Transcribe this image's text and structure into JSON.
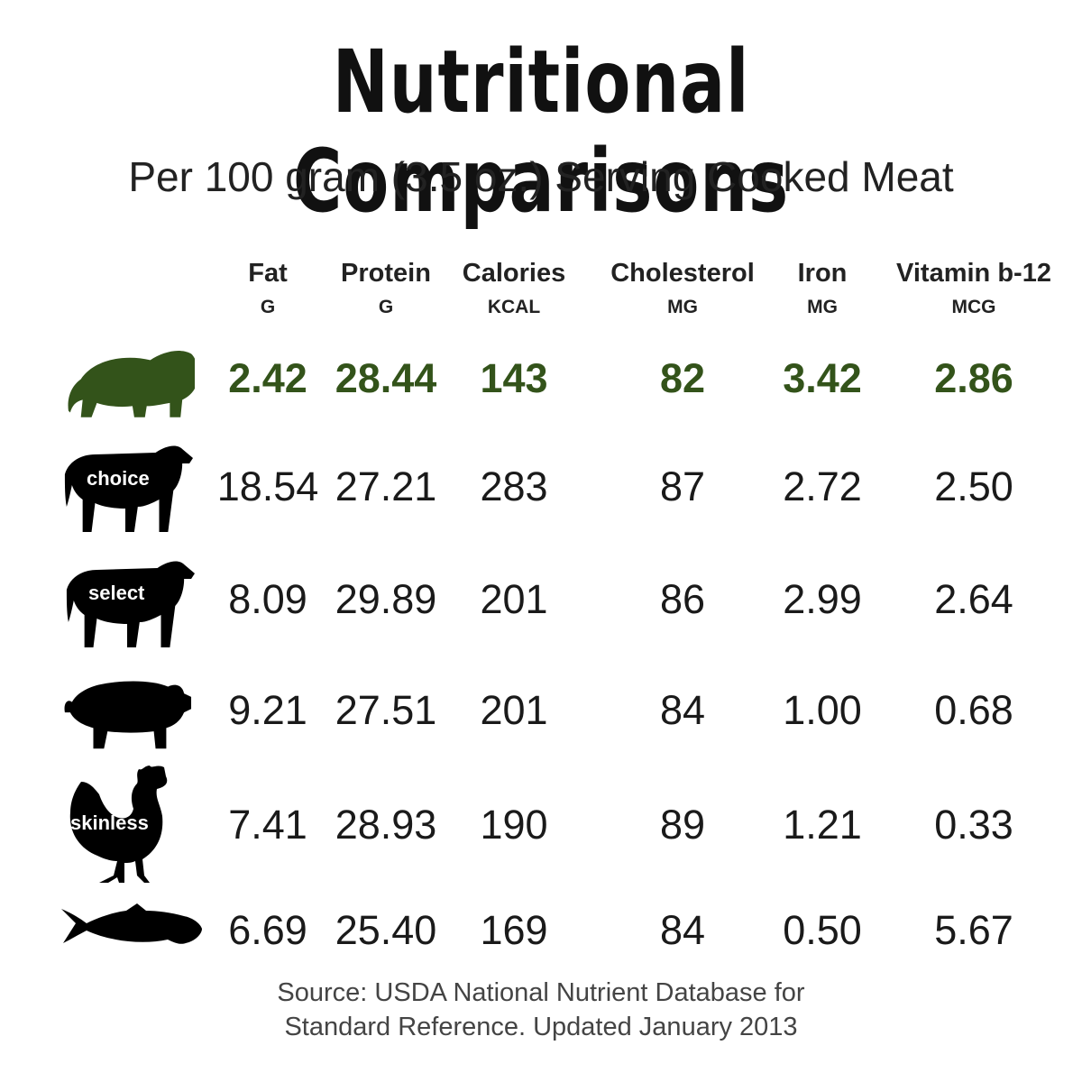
{
  "chart_data": {
    "type": "table",
    "title": "Nutritional Comparisons",
    "subtitle": "Per 100 gram (3.5 oz.) Serving Cooked Meat",
    "columns": [
      {
        "name": "Fat",
        "unit": "G"
      },
      {
        "name": "Protein",
        "unit": "G"
      },
      {
        "name": "Calories",
        "unit": "KCAL"
      },
      {
        "name": "Cholesterol",
        "unit": "MG"
      },
      {
        "name": "Iron",
        "unit": "MG"
      },
      {
        "name": "Vitamin b-12",
        "unit": "MCG"
      }
    ],
    "rows": [
      {
        "icon": "bison-icon",
        "label": "",
        "highlight": true,
        "values": [
          "2.42",
          "28.44",
          "143",
          "82",
          "3.42",
          "2.86"
        ]
      },
      {
        "icon": "cow-icon",
        "label": "choice",
        "highlight": false,
        "values": [
          "18.54",
          "27.21",
          "283",
          "87",
          "2.72",
          "2.50"
        ]
      },
      {
        "icon": "cow-icon",
        "label": "select",
        "highlight": false,
        "values": [
          "8.09",
          "29.89",
          "201",
          "86",
          "2.99",
          "2.64"
        ]
      },
      {
        "icon": "pig-icon",
        "label": "",
        "highlight": false,
        "values": [
          "9.21",
          "27.51",
          "201",
          "84",
          "1.00",
          "0.68"
        ]
      },
      {
        "icon": "chicken-icon",
        "label": "skinless",
        "highlight": false,
        "values": [
          "7.41",
          "28.93",
          "190",
          "89",
          "1.21",
          "0.33"
        ]
      },
      {
        "icon": "fish-icon",
        "label": "",
        "highlight": false,
        "values": [
          "6.69",
          "25.40",
          "169",
          "84",
          "0.50",
          "5.67"
        ]
      }
    ],
    "source": [
      "Source: USDA National Nutrient Database for",
      "Standard Reference. Updated January 2013"
    ]
  },
  "colors": {
    "highlight": "#33531a",
    "icon_bison": "#33531a",
    "icon_other": "#000000",
    "text": "#1a1a1a"
  }
}
